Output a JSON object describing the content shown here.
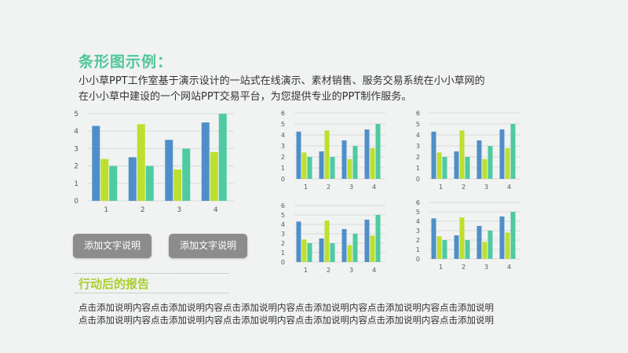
{
  "header": {
    "title": "条形图示例：",
    "description_line1": "小小草PPT工作室基于演示设计的一站式在线演示、素材销售、服务交易系统在小小草网的",
    "description_line2": "在小小草中建设的一个网站PPT交易平台，为您提供专业的PPT制作服务。"
  },
  "buttons": {
    "left_label": "添加文字说明",
    "right_label": "添加文字说明"
  },
  "report": {
    "title": "行动后的报告",
    "line1": "点击添加说明内容点击添加说明内容点击添加说明内容点击添加说明内容点击添加说明内容点击添加说明",
    "line2": "点击添加说明内容点击添加说明内容点击添加说明内容点击添加说明内容点击添加说明内容点击添加说明"
  },
  "colors": {
    "series": [
      "#4f8fc9",
      "#bde02e",
      "#4ecba0"
    ],
    "grid": "#d9d9d9",
    "axis_text": "#595959"
  },
  "chart_data": [
    {
      "type": "bar",
      "categories": [
        "1",
        "2",
        "3",
        "4"
      ],
      "ylim": [
        0,
        5
      ],
      "yticks": [
        0,
        1,
        2,
        3,
        4,
        5
      ],
      "grid": true,
      "series": [
        {
          "values": [
            4.3,
            2.5,
            3.5,
            4.5
          ]
        },
        {
          "values": [
            2.4,
            4.4,
            1.8,
            2.8
          ]
        },
        {
          "values": [
            2,
            2,
            3,
            5
          ]
        }
      ]
    },
    {
      "type": "bar",
      "categories": [
        "1",
        "2",
        "3",
        "4"
      ],
      "ylim": [
        0,
        6
      ],
      "yticks": [
        0,
        1,
        2,
        3,
        4,
        5,
        6
      ],
      "grid": true,
      "series": [
        {
          "values": [
            4.3,
            2.5,
            3.5,
            4.5
          ]
        },
        {
          "values": [
            2.4,
            4.4,
            1.8,
            2.8
          ]
        },
        {
          "values": [
            2,
            2,
            3,
            5
          ]
        }
      ]
    },
    {
      "type": "bar",
      "categories": [
        "1",
        "2",
        "3",
        "4"
      ],
      "ylim": [
        0,
        6
      ],
      "yticks": [
        0,
        1,
        2,
        3,
        4,
        5,
        6
      ],
      "grid": true,
      "series": [
        {
          "values": [
            4.3,
            2.5,
            3.5,
            4.5
          ]
        },
        {
          "values": [
            2.4,
            4.4,
            1.8,
            2.8
          ]
        },
        {
          "values": [
            2,
            2,
            3,
            5
          ]
        }
      ]
    },
    {
      "type": "bar",
      "categories": [
        "1",
        "2",
        "3",
        "4"
      ],
      "ylim": [
        0,
        6
      ],
      "yticks": [
        0,
        1,
        2,
        3,
        4,
        5,
        6
      ],
      "grid": true,
      "series": [
        {
          "values": [
            4.3,
            2.5,
            3.5,
            4.5
          ]
        },
        {
          "values": [
            2.4,
            4.4,
            1.8,
            2.8
          ]
        },
        {
          "values": [
            2,
            2,
            3,
            5
          ]
        }
      ]
    },
    {
      "type": "bar",
      "categories": [
        "1",
        "2",
        "3",
        "4"
      ],
      "ylim": [
        0,
        6
      ],
      "yticks": [
        0,
        1,
        2,
        3,
        4,
        5,
        6
      ],
      "grid": true,
      "series": [
        {
          "values": [
            4.3,
            2.5,
            3.5,
            4.5
          ]
        },
        {
          "values": [
            2.4,
            4.4,
            1.8,
            2.8
          ]
        },
        {
          "values": [
            2,
            2,
            3,
            5
          ]
        }
      ]
    }
  ]
}
